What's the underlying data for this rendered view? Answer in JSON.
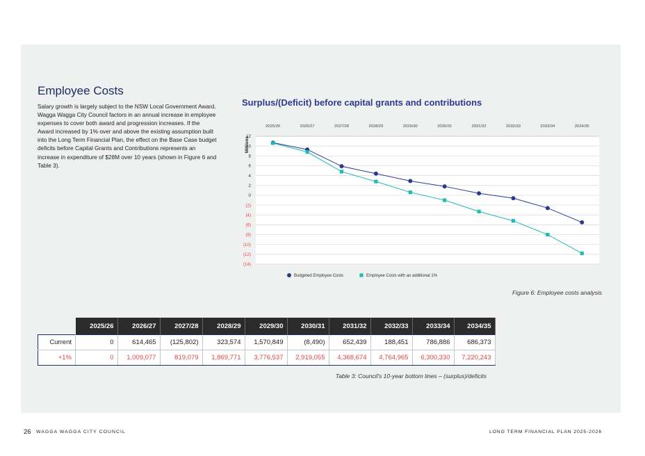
{
  "section": {
    "title": "Employee Costs",
    "body": "Salary growth is largely subject to the NSW Local Government Award. Wagga Wagga City Council factors in an annual increase in employee expenses to cover both award and progression increases. If the Award increased by 1% over and above the existing assumption built into the Long Term Financial Plan, the effect on the Base Case budget deficits before Capital Grants and Contributions represents an increase in expenditure of $28M over 10 years (shown in Figure 6 and Table 3)."
  },
  "chart_data": {
    "type": "line",
    "title": "Surplus/(Deficit) before capital grants and contributions",
    "ylabel": "Millions",
    "categories": [
      "2025/26",
      "2026/27",
      "2027/28",
      "2028/29",
      "2029/30",
      "2030/31",
      "2031/32",
      "2032/33",
      "2033/34",
      "2034/35"
    ],
    "y_ticks": [
      12,
      10,
      8,
      6,
      4,
      2,
      0,
      -2,
      -4,
      -6,
      -8,
      -10,
      -12,
      -14
    ],
    "y_tick_labels": [
      "12",
      "10",
      "8",
      "6",
      "4",
      "2",
      "0",
      "(2)",
      "(4)",
      "(6)",
      "(8)",
      "(10)",
      "(12)",
      "(14)"
    ],
    "ylim": [
      -14,
      12
    ],
    "x_axis_position": "top",
    "grid": true,
    "legend_position": "bottom",
    "series": [
      {
        "name": "Budgeted Employee Costs",
        "marker": "circle",
        "color": "#2a3b8f",
        "values": [
          10.7,
          9.3,
          5.9,
          4.4,
          2.9,
          1.8,
          0.4,
          -0.6,
          -2.6,
          -5.5
        ]
      },
      {
        "name": "Employee Costs with an additional 1%",
        "marker": "square",
        "color": "#1dbbb4",
        "values": [
          10.6,
          8.8,
          4.8,
          2.8,
          0.6,
          -1.0,
          -3.3,
          -5.2,
          -8.0,
          -11.8
        ]
      }
    ],
    "colors": {
      "negative_tick": "#e04545",
      "grid": "#d9d9d9"
    }
  },
  "figure_caption": "Figure 6: Employee costs analysis",
  "table": {
    "headers": [
      "2025/26",
      "2026/27",
      "2027/28",
      "2028/29",
      "2029/30",
      "2030/31",
      "2031/32",
      "2032/33",
      "2033/34",
      "2034/35"
    ],
    "rows": [
      {
        "label": "Current",
        "values": [
          "0",
          "614,465",
          "(125,802)",
          "323,574",
          "1,570,849",
          "(8,490)",
          "652,439",
          "188,451",
          "786,886",
          "686,373"
        ]
      },
      {
        "label": "+1%",
        "values": [
          "0",
          "1,009,077",
          "819,079",
          "1,869,771",
          "3,776,537",
          "2,919,055",
          "4,368,674",
          "4,764,965",
          "6,300,330",
          "7,220,243"
        ]
      }
    ],
    "caption": "Table 3: Council's 10-year bottom lines – (surplus)/deficits"
  },
  "footer": {
    "page": "26",
    "organization": "WAGGA WAGGA CITY COUNCIL",
    "document": "LONG TERM FINANCIAL PLAN 2025-2026"
  }
}
